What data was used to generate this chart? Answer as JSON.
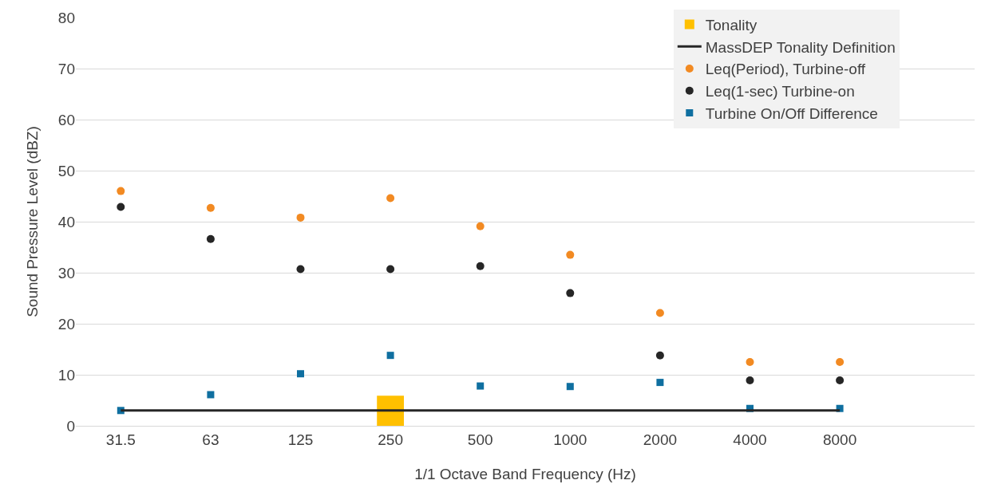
{
  "chart_data": {
    "type": "scatter",
    "xlabel": "1/1 Octave Band Frequency (Hz)",
    "ylabel": "Sound Pressure Level (dBZ)",
    "categories": [
      "31.5",
      "63",
      "125",
      "250",
      "500",
      "1000",
      "2000",
      "4000",
      "8000",
      null
    ],
    "ylim": [
      0,
      80
    ],
    "yticks": [
      0,
      10,
      20,
      30,
      40,
      50,
      60,
      70,
      80
    ],
    "grid": "y",
    "legend": "top right",
    "series": [
      {
        "name": "Tonality",
        "type": "bar",
        "color": "#ffc000",
        "values": [
          null,
          null,
          null,
          5.9,
          null,
          null,
          null,
          null,
          null,
          null
        ]
      },
      {
        "name": "MassDEP Tonality Definition",
        "type": "line",
        "color": "#262626",
        "marker": "none",
        "values": [
          3,
          3,
          3,
          3,
          3,
          3,
          3,
          3,
          3,
          null
        ]
      },
      {
        "name": "Leq(Period), Turbine-off",
        "color": "#f28a22",
        "marker": "circle",
        "values": [
          46.0,
          42.7,
          40.8,
          44.6,
          39.1,
          33.5,
          22.1,
          12.5,
          12.5,
          null
        ]
      },
      {
        "name": "Leq(1-sec) Turbine-on",
        "color": "#262626",
        "marker": "circle",
        "values": [
          42.9,
          36.6,
          30.7,
          30.7,
          31.3,
          26.0,
          13.8,
          8.9,
          8.9,
          null
        ]
      },
      {
        "name": "Turbine On/Off Difference",
        "color": "#0f6fa0",
        "marker": "square",
        "values": [
          3.0,
          6.1,
          10.2,
          13.8,
          7.8,
          7.7,
          8.5,
          3.4,
          3.4,
          null
        ]
      }
    ]
  }
}
